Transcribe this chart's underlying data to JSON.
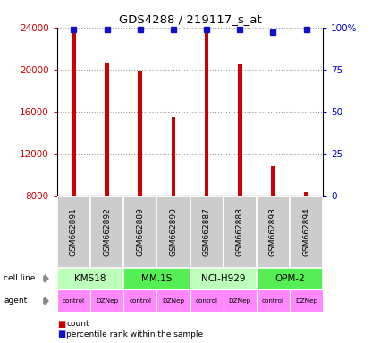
{
  "title": "GDS4288 / 219117_s_at",
  "samples": [
    "GSM662891",
    "GSM662892",
    "GSM662889",
    "GSM662890",
    "GSM662887",
    "GSM662888",
    "GSM662893",
    "GSM662894"
  ],
  "bar_values": [
    23700,
    20600,
    19900,
    15500,
    23700,
    20500,
    10800,
    8300
  ],
  "percentile_values": [
    99,
    99,
    99,
    99,
    99,
    99,
    97,
    99
  ],
  "ylim_left": [
    8000,
    24000
  ],
  "ylim_right": [
    0,
    100
  ],
  "yticks_left": [
    8000,
    12000,
    16000,
    20000,
    24000
  ],
  "yticks_right": [
    0,
    25,
    50,
    75,
    100
  ],
  "bar_color": "#cc0000",
  "dot_color": "#1111cc",
  "cell_lines": [
    "KMS18",
    "MM.1S",
    "NCI-H929",
    "OPM-2"
  ],
  "cell_line_colors": [
    "#bbffbb",
    "#55ee55",
    "#bbffbb",
    "#55ee55"
  ],
  "agent_labels": [
    "control",
    "DZNep",
    "control",
    "DZNep",
    "control",
    "DZNep",
    "control",
    "DZNep"
  ],
  "agent_color": "#ff88ff",
  "sample_bg_color": "#cccccc",
  "ylabel_left_color": "#cc0000",
  "ylabel_right_color": "#0000cc",
  "bar_width": 0.12
}
